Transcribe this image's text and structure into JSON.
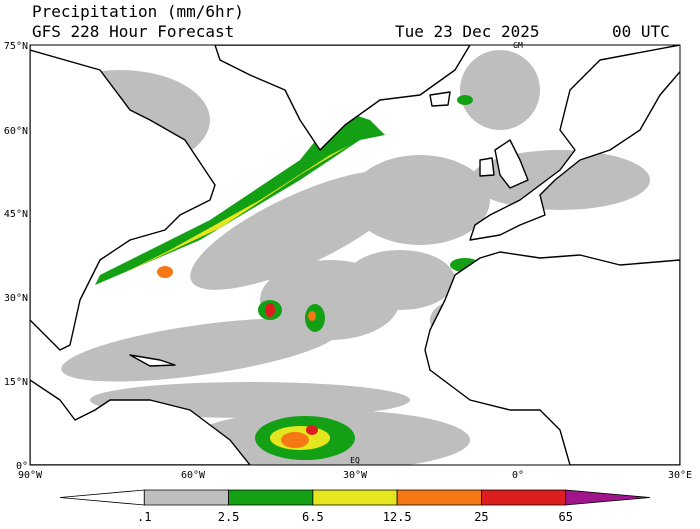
{
  "header": {
    "title": "Precipitation (mm/6hr)",
    "subtitle": "GFS 228 Hour Forecast",
    "date": "Tue 23 Dec 2025",
    "time": "00 UTC"
  },
  "map": {
    "lat_labels": [
      "75°N",
      "60°N",
      "45°N",
      "30°N",
      "15°N",
      "0°"
    ],
    "lon_labels": [
      "90°W",
      "60°W",
      "30°W",
      "0°",
      "30°E"
    ],
    "markers": [
      "GM",
      "EQ"
    ]
  },
  "colorbar": {
    "levels": [
      {
        "value": 0.1,
        "label": ".1"
      },
      2.5,
      6.5,
      12.5,
      25,
      65
    ],
    "colors": [
      "#ffffff",
      "#bebebe",
      "#14a014",
      "#e6e61e",
      "#f57814",
      "#dc1e1e",
      "#a0148c"
    ]
  }
}
